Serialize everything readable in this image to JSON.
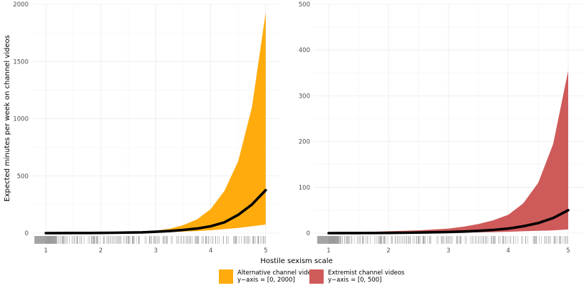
{
  "chart_data": [
    {
      "type": "area",
      "panel": "left",
      "ylabel": "Expected minutes per week on channel videos",
      "xlim": [
        0.75,
        5.25
      ],
      "ylim": [
        0,
        2000
      ],
      "yticks": [
        0,
        500,
        1000,
        1500,
        2000
      ],
      "xticks": [
        1,
        2,
        3,
        4,
        5
      ],
      "grid": true,
      "color": "#FFAB0D",
      "x": [
        1,
        1.25,
        1.5,
        1.75,
        2,
        2.25,
        2.5,
        2.75,
        3,
        3.25,
        3.5,
        3.75,
        4,
        4.25,
        4.5,
        4.75,
        5
      ],
      "estimate": [
        0,
        0.5,
        1,
        1.5,
        2,
        3,
        5,
        7,
        12,
        18,
        28,
        40,
        60,
        95,
        160,
        250,
        375
      ],
      "lower": [
        0,
        0.3,
        0.5,
        0.8,
        1.2,
        2,
        3,
        4,
        6,
        9,
        13,
        18,
        25,
        35,
        45,
        60,
        75
      ],
      "upper": [
        0,
        0.8,
        1.5,
        2.5,
        4,
        6,
        9,
        14,
        22,
        38,
        70,
        120,
        210,
        370,
        630,
        1100,
        1930
      ]
    },
    {
      "type": "area",
      "panel": "right",
      "xlim": [
        0.75,
        5.25
      ],
      "ylim": [
        0,
        500
      ],
      "yticks": [
        0,
        100,
        200,
        300,
        400,
        500
      ],
      "xticks": [
        1,
        2,
        3,
        4,
        5
      ],
      "grid": true,
      "color": "#CF5A5A",
      "x": [
        1,
        1.25,
        1.5,
        1.75,
        2,
        2.25,
        2.5,
        2.75,
        3,
        3.25,
        3.5,
        3.75,
        4,
        4.25,
        4.5,
        4.75,
        5
      ],
      "estimate": [
        0,
        0.1,
        0.2,
        0.3,
        0.5,
        0.8,
        1.2,
        1.8,
        2.5,
        3.5,
        5,
        7,
        10,
        15,
        22,
        33,
        50
      ],
      "lower": [
        0,
        0.05,
        0.1,
        0.15,
        0.3,
        0.4,
        0.6,
        0.8,
        1,
        1.3,
        1.7,
        2.2,
        3,
        4,
        5,
        6,
        8
      ],
      "upper": [
        0,
        1,
        2,
        3,
        4,
        5,
        6,
        8,
        10,
        14,
        20,
        28,
        40,
        65,
        110,
        195,
        355
      ]
    }
  ],
  "xlabel": "Hostile sexism scale",
  "rug_color": "#9a9a9a",
  "line_color": "#000000",
  "legend": [
    {
      "label": "Alternative channel videos",
      "range": "y−axis = [0, 2000]",
      "color": "#FFAB0D"
    },
    {
      "label": "Extremist channel videos",
      "range": "y−axis = [0, 500]",
      "color": "#CF5A5A"
    }
  ]
}
